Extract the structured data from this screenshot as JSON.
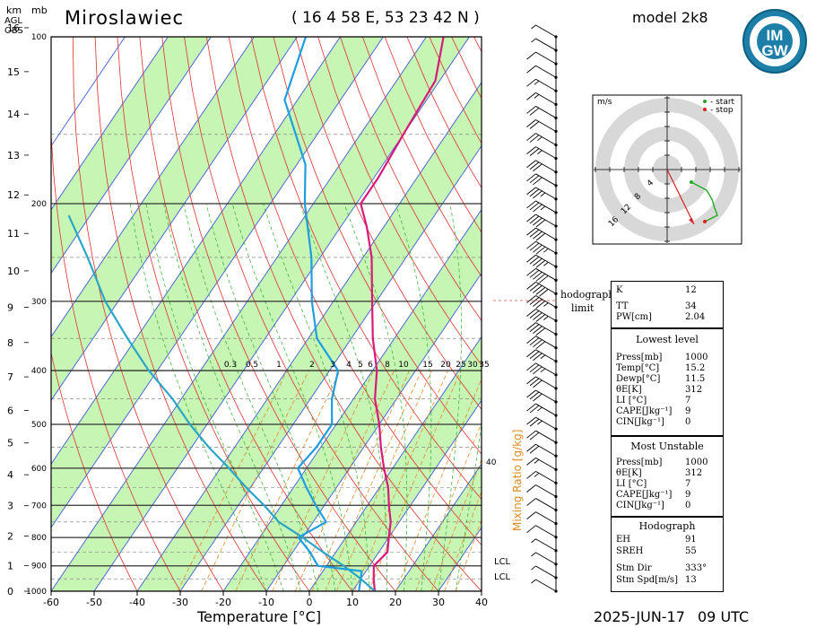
{
  "header": {
    "station": "Miroslawiec",
    "coords": "( 16 4 58 E, 53 23 42 N )",
    "model": "model 2k8",
    "logo_top": "IM",
    "logo_bottom": "GW",
    "logo_ring_text": "INSTYTUT METEOROLOGII I GOSPODARKI WODNEJ",
    "date": "2025-JUN-17",
    "time": "09 UTC"
  },
  "axes": {
    "km_label": "km",
    "mb_label": "mb",
    "agl_label": "AGL",
    "obs_label": "OBS",
    "x_label": "Temperature [°C]",
    "mixing_label": "Mixing Ratio [g/kg]",
    "x_ticks": [
      "-60",
      "-50",
      "-40",
      "-30",
      "-20",
      "-10",
      "0",
      "10",
      "20",
      "30",
      "40"
    ],
    "km_ticks": [
      "0",
      "1",
      "2",
      "3",
      "4",
      "5",
      "6",
      "7",
      "8",
      "9",
      "10",
      "11",
      "12",
      "13",
      "14",
      "15",
      "16"
    ],
    "p_ticks": [
      "1000",
      "900",
      "800",
      "700",
      "600",
      "500",
      "400",
      "300",
      "200",
      "100"
    ],
    "mixing_ticks": [
      "0.3",
      "0.5",
      "1",
      "2",
      "3",
      "4",
      "5",
      "6",
      "8",
      "10",
      "15",
      "20",
      "25",
      "30",
      "35"
    ],
    "adiabat_label": "40",
    "lcl_labels": [
      "LCL",
      "LCL"
    ]
  },
  "hodograph": {
    "unit": "m/s",
    "legend_start": "- start",
    "legend_stop": "- stop",
    "ring_labels": [
      "4",
      "8",
      "12",
      "16"
    ],
    "limit_label_1": "hodograph",
    "limit_label_2": "limit",
    "colors": {
      "path": "#22aa22",
      "storm": "#e02020"
    }
  },
  "indices": {
    "top": [
      {
        "label": "K",
        "value": "12"
      },
      {
        "label": "TT",
        "value": "34"
      },
      {
        "label": "PW[cm]",
        "value": "2.04"
      }
    ],
    "lowest_title": "Lowest level",
    "lowest": [
      {
        "label": "Press[mb]",
        "value": "1000"
      },
      {
        "label": "Temp[°C]",
        "value": "15.2"
      },
      {
        "label": "Dewp[°C]",
        "value": "11.5"
      },
      {
        "label": "θE[K]",
        "value": "312"
      },
      {
        "label": "LI [°C]",
        "value": "7"
      },
      {
        "label": "CAPE[Jkg⁻¹]",
        "value": "9"
      },
      {
        "label": "CIN[Jkg⁻¹]",
        "value": "0"
      }
    ],
    "unstable_title": "Most Unstable",
    "unstable": [
      {
        "label": "Press[mb]",
        "value": "1000"
      },
      {
        "label": "θE[K]",
        "value": "312"
      },
      {
        "label": "LI [°C]",
        "value": "7"
      },
      {
        "label": "CAPE[Jkg⁻¹]",
        "value": "9"
      },
      {
        "label": "CIN[Jkg⁻¹]",
        "value": "0"
      }
    ],
    "hodo_title": "Hodograph",
    "hodo": [
      {
        "label": "EH",
        "value": "91"
      },
      {
        "label": "SREH",
        "value": "55"
      },
      {
        "label": "Stm Dir",
        "value": "333°"
      },
      {
        "label": "Stm Spd[m/s]",
        "value": "13"
      }
    ]
  },
  "chart_data": {
    "type": "line",
    "title": "Miroslawiec",
    "xlabel": "Temperature [°C]",
    "ylabel": "mb",
    "xlim": [
      -60,
      40
    ],
    "ylim": [
      1000,
      100
    ],
    "y_scale": "log",
    "skew": true,
    "series": [
      {
        "color": "#d81b7a",
        "points": [
          [
            1000,
            15.2
          ],
          [
            950,
            13
          ],
          [
            900,
            11
          ],
          [
            850,
            12
          ],
          [
            800,
            10
          ],
          [
            750,
            8
          ],
          [
            700,
            5
          ],
          [
            650,
            2
          ],
          [
            600,
            -2
          ],
          [
            550,
            -6
          ],
          [
            500,
            -10
          ],
          [
            450,
            -15
          ],
          [
            400,
            -19
          ],
          [
            350,
            -25
          ],
          [
            300,
            -31
          ],
          [
            250,
            -38
          ],
          [
            220,
            -44
          ],
          [
            200,
            -49
          ],
          [
            180,
            -49
          ],
          [
            150,
            -50
          ],
          [
            120,
            -51
          ],
          [
            100,
            -56
          ]
        ]
      },
      {
        "color": "#1e9ee0",
        "points": [
          [
            1000,
            11.5
          ],
          [
            950,
            10
          ],
          [
            920,
            9
          ],
          [
            900,
            -2
          ],
          [
            850,
            -6
          ],
          [
            800,
            -11
          ],
          [
            750,
            -7
          ],
          [
            700,
            -12
          ],
          [
            650,
            -17
          ],
          [
            600,
            -22
          ],
          [
            550,
            -21
          ],
          [
            500,
            -21
          ],
          [
            450,
            -25
          ],
          [
            400,
            -28
          ],
          [
            350,
            -38
          ],
          [
            300,
            -45
          ],
          [
            250,
            -52
          ],
          [
            200,
            -62
          ],
          [
            170,
            -68
          ],
          [
            150,
            -75
          ],
          [
            130,
            -83
          ],
          [
            100,
            -88
          ]
        ]
      },
      {
        "color": "#2aa6c8",
        "points": [
          [
            1000,
            15.2
          ],
          [
            950,
            10
          ],
          [
            900,
            4
          ],
          [
            850,
            -3
          ],
          [
            800,
            -10
          ],
          [
            750,
            -18
          ],
          [
            700,
            -24
          ],
          [
            650,
            -31
          ],
          [
            600,
            -38
          ],
          [
            550,
            -46
          ],
          [
            500,
            -54
          ],
          [
            450,
            -62
          ],
          [
            400,
            -72
          ],
          [
            350,
            -82
          ],
          [
            300,
            -93
          ],
          [
            250,
            -104
          ],
          [
            210,
            -115
          ]
        ]
      }
    ],
    "wind_barbs_kt": [
      5,
      5,
      10,
      10,
      15,
      15,
      20,
      20,
      25,
      25,
      30,
      30,
      35,
      35,
      40,
      40,
      45,
      45,
      50,
      50,
      45,
      45,
      40,
      40,
      35,
      35,
      30,
      30,
      25,
      25,
      20,
      20,
      15,
      15,
      10,
      10,
      10,
      10,
      5,
      5,
      5,
      5
    ]
  }
}
